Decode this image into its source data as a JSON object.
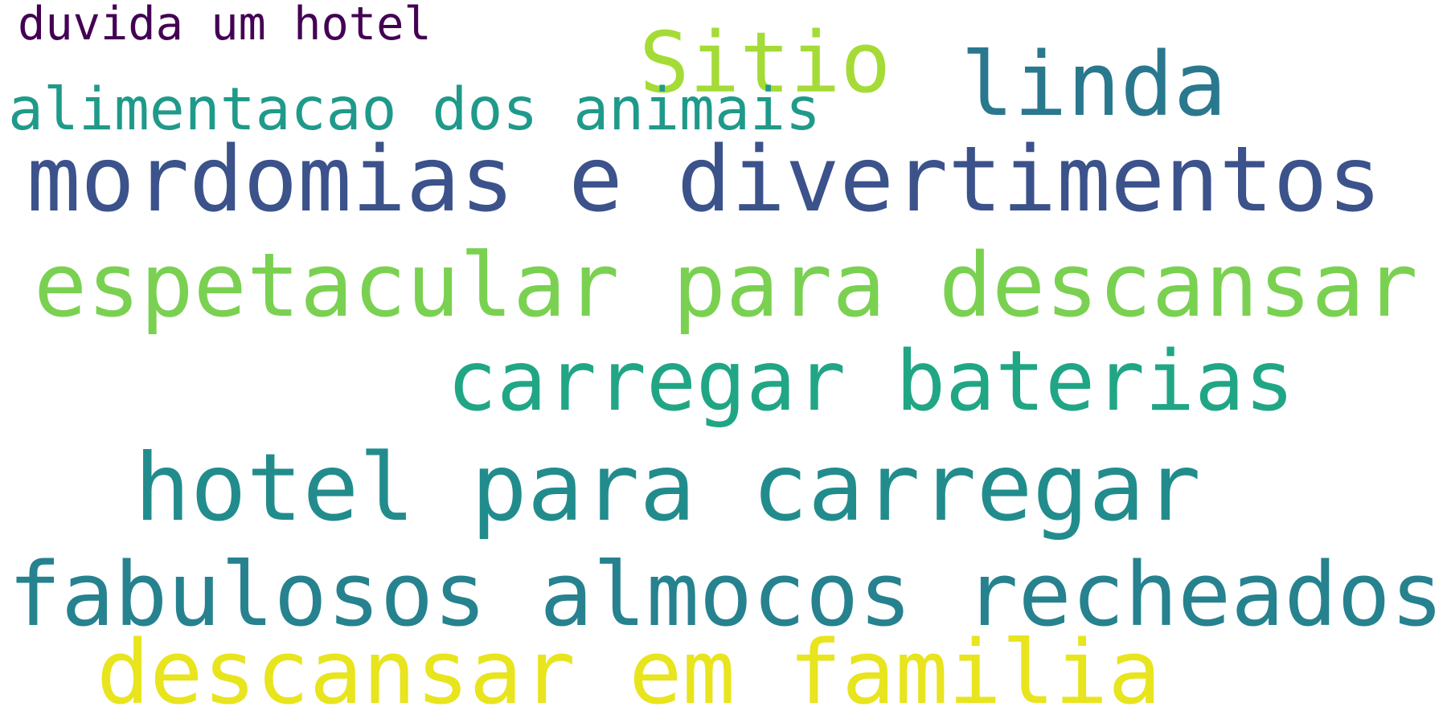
{
  "words": [
    {
      "text": "duvida um hotel",
      "color": "#440154"
    },
    {
      "text": "Sitio",
      "color": "#a5db36"
    },
    {
      "text": "linda",
      "color": "#2a788e"
    },
    {
      "text": "alimentacao dos animais",
      "color": "#1f9a8a"
    },
    {
      "text": "mordomias e divertimentos",
      "color": "#3b528b"
    },
    {
      "text": "espetacular para descansar",
      "color": "#7ad151"
    },
    {
      "text": "carregar baterias",
      "color": "#21a685"
    },
    {
      "text": "hotel para carregar",
      "color": "#228c8d"
    },
    {
      "text": "fabulosos almocos recheados",
      "color": "#26828e"
    },
    {
      "text": "descansar em familia",
      "color": "#e8e41e"
    }
  ]
}
